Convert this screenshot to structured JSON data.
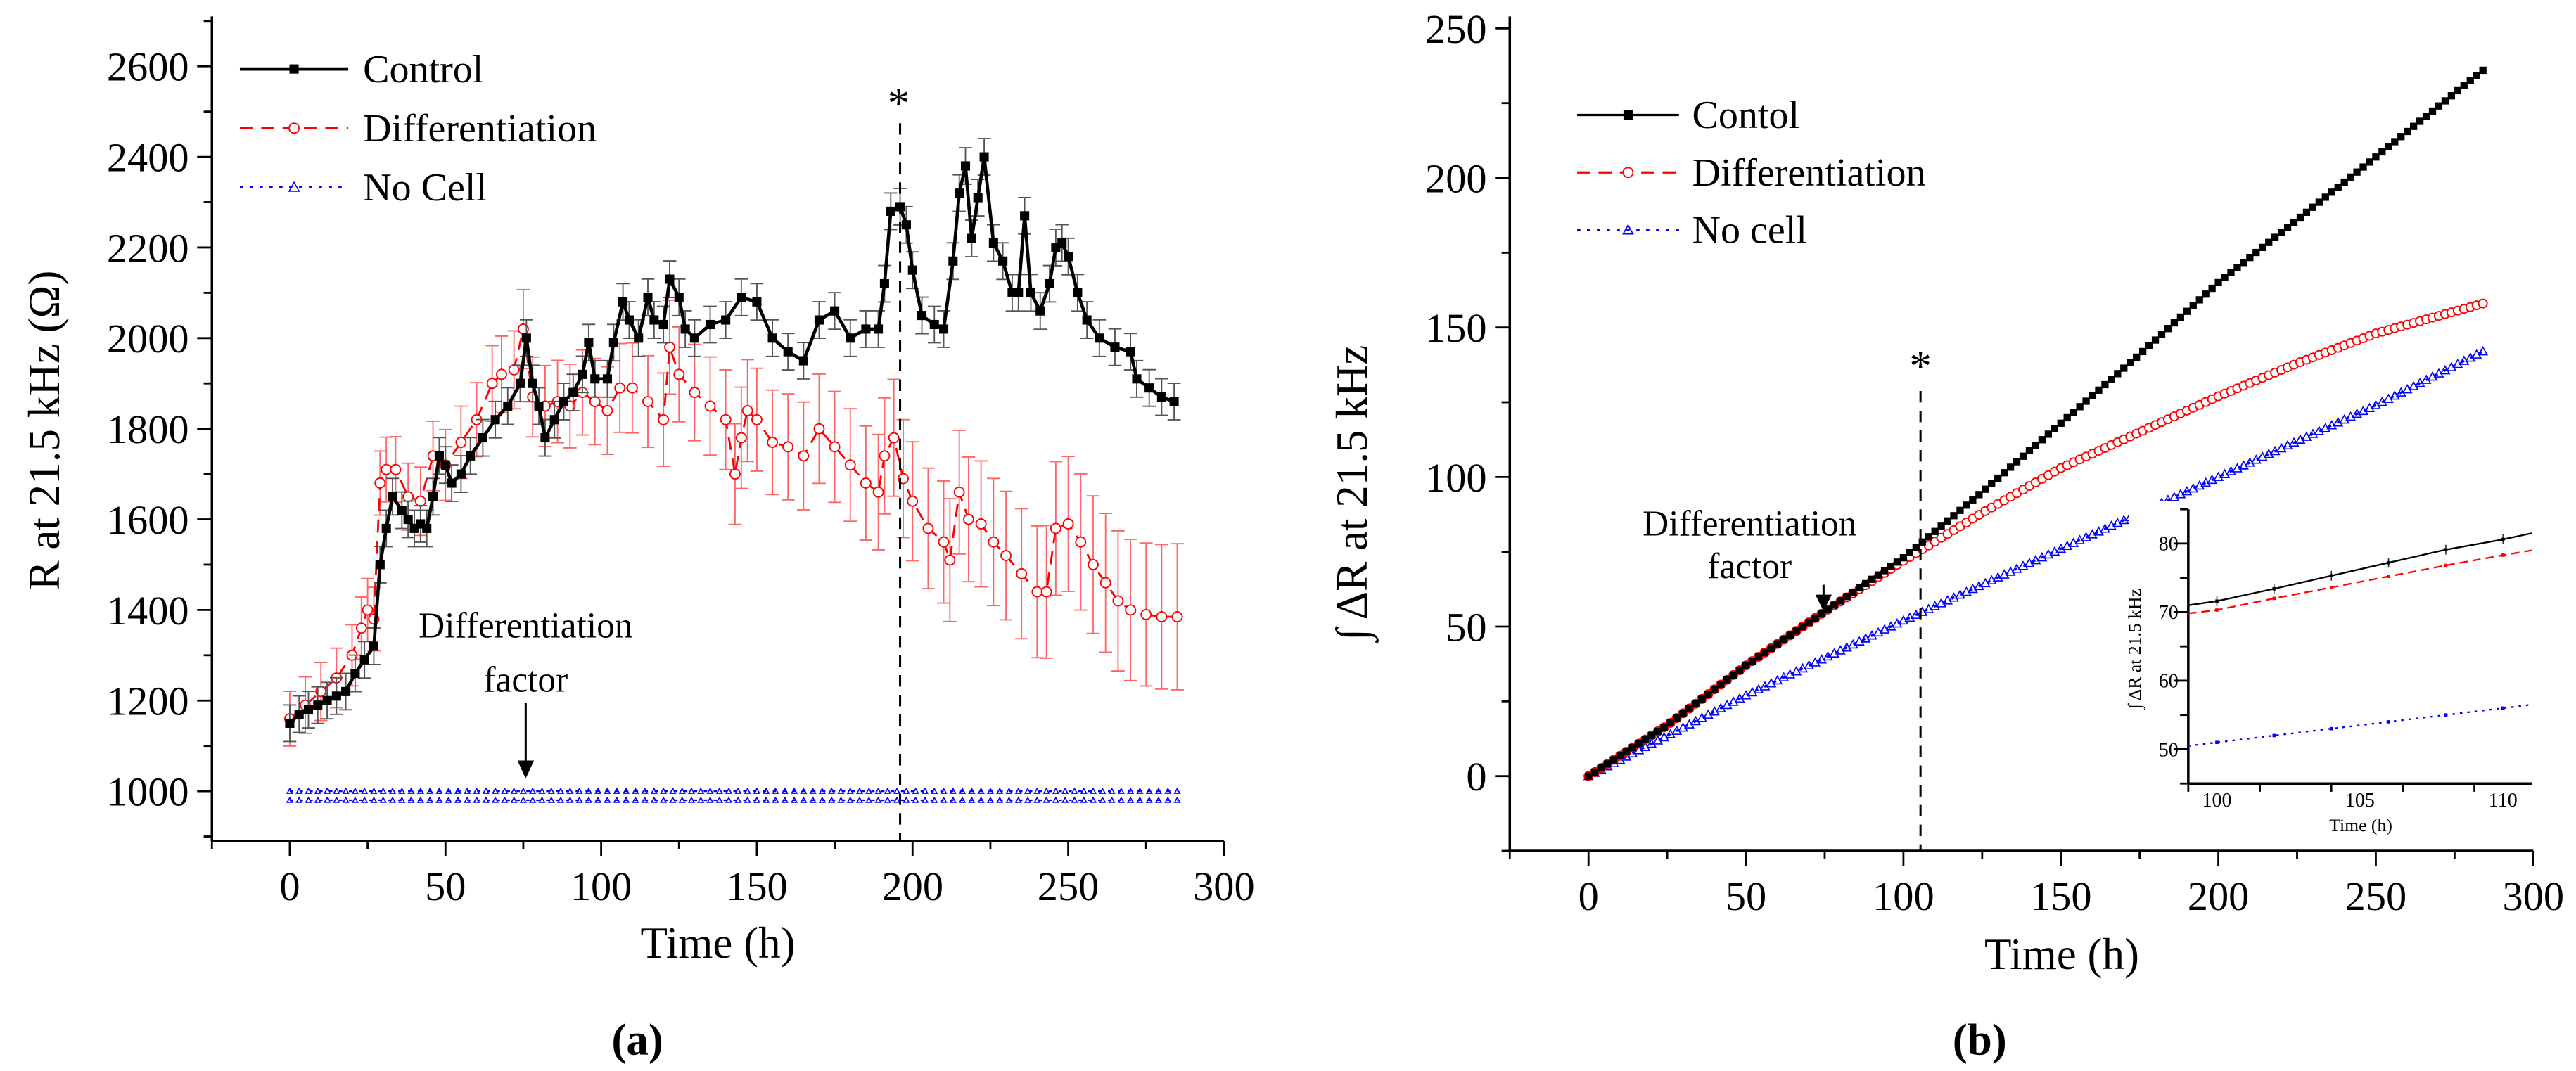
{
  "chart_data": [
    {
      "panel_label": "(a)",
      "type": "line",
      "xlabel": "Time (h)",
      "ylabel": "R at 21.5 kHz (Ω)",
      "xlim": [
        -25,
        300
      ],
      "ylim": [
        890,
        2710
      ],
      "xticks": [
        "0",
        "50",
        "100",
        "150",
        "200",
        "250",
        "300"
      ],
      "yticks": [
        "1000",
        "1200",
        "1400",
        "1600",
        "1800",
        "2000",
        "2200",
        "2400",
        "2600"
      ],
      "legend_position": "top-left",
      "annotations": {
        "star": "*",
        "star_time": 196,
        "factor_line1": "Differentiation",
        "factor_line2": "factor",
        "factor_time": 76
      },
      "series": [
        {
          "name": "Control",
          "color": "#000000",
          "marker": "filled-square",
          "line": "solid",
          "error": 40,
          "x": [
            0,
            3,
            6,
            9,
            12,
            15,
            18,
            21,
            24,
            27,
            29,
            31,
            33,
            36,
            38,
            40,
            42,
            44,
            46,
            48,
            50,
            52,
            55,
            58,
            62,
            66,
            70,
            74,
            76,
            78,
            80,
            82,
            85,
            88,
            91,
            94,
            96,
            98,
            102,
            104,
            107,
            109,
            112,
            115,
            117,
            120,
            122,
            125,
            127,
            130,
            135,
            140,
            145,
            150,
            155,
            160,
            165,
            170,
            175,
            180,
            185,
            189,
            191,
            193,
            196,
            198,
            200,
            203,
            207,
            210,
            213,
            215,
            217,
            219,
            221,
            223,
            226,
            229,
            232,
            234,
            236,
            238,
            241,
            244,
            246,
            248,
            250,
            253,
            256,
            260,
            265,
            270,
            272,
            276,
            280,
            284
          ],
          "y": [
            1150,
            1170,
            1180,
            1190,
            1200,
            1210,
            1220,
            1260,
            1290,
            1320,
            1500,
            1580,
            1650,
            1620,
            1600,
            1580,
            1590,
            1580,
            1650,
            1740,
            1720,
            1680,
            1700,
            1740,
            1780,
            1820,
            1850,
            1900,
            2000,
            1900,
            1850,
            1780,
            1820,
            1860,
            1880,
            1920,
            1990,
            1910,
            1910,
            1990,
            2080,
            2040,
            2000,
            2090,
            2040,
            2030,
            2130,
            2090,
            2020,
            2000,
            2030,
            2040,
            2090,
            2080,
            2000,
            1970,
            1950,
            2040,
            2060,
            2000,
            2020,
            2020,
            2120,
            2280,
            2290,
            2250,
            2150,
            2050,
            2030,
            2020,
            2170,
            2320,
            2380,
            2220,
            2310,
            2400,
            2210,
            2170,
            2100,
            2100,
            2270,
            2100,
            2060,
            2120,
            2200,
            2210,
            2180,
            2100,
            2040,
            2000,
            1980,
            1970,
            1910,
            1890,
            1870,
            1860
          ]
        },
        {
          "name": "Differentiation",
          "color": "#ff0000",
          "marker": "open-circle",
          "line": "dashed",
          "error": 100,
          "x": [
            0,
            5,
            10,
            15,
            20,
            23,
            25,
            27,
            29,
            31,
            34,
            38,
            42,
            46,
            50,
            55,
            60,
            65,
            68,
            72,
            75,
            78,
            82,
            86,
            90,
            94,
            98,
            102,
            106,
            110,
            115,
            120,
            122,
            125,
            130,
            135,
            140,
            143,
            145,
            147,
            150,
            155,
            160,
            165,
            170,
            175,
            180,
            185,
            189,
            191,
            194,
            197,
            200,
            205,
            210,
            212,
            215,
            218,
            222,
            226,
            230,
            235,
            240,
            243,
            246,
            250,
            254,
            258,
            262,
            266,
            270,
            275,
            280,
            285
          ],
          "y": [
            1160,
            1190,
            1220,
            1250,
            1300,
            1360,
            1400,
            1380,
            1680,
            1710,
            1710,
            1650,
            1640,
            1740,
            1720,
            1770,
            1820,
            1900,
            1920,
            1930,
            2020,
            1870,
            1850,
            1860,
            1850,
            1880,
            1860,
            1840,
            1890,
            1890,
            1860,
            1820,
            1980,
            1920,
            1880,
            1850,
            1820,
            1700,
            1780,
            1840,
            1820,
            1770,
            1760,
            1740,
            1800,
            1760,
            1720,
            1680,
            1660,
            1740,
            1780,
            1690,
            1640,
            1580,
            1550,
            1510,
            1660,
            1600,
            1590,
            1550,
            1520,
            1480,
            1440,
            1440,
            1580,
            1590,
            1550,
            1500,
            1460,
            1420,
            1400,
            1390,
            1385,
            1385
          ]
        },
        {
          "name": "No Cell",
          "color": "#0000ff",
          "marker": "open-triangle",
          "line": "dotted",
          "error": 10,
          "x": [
            0,
            285
          ],
          "y": [
            990,
            990
          ]
        }
      ]
    },
    {
      "panel_label": "(b)",
      "type": "line",
      "xlabel": "Time (h)",
      "ylabel": "∫ ΔR at 21.5 kHz",
      "xlim": [
        -25,
        300
      ],
      "ylim": [
        -25,
        254
      ],
      "xticks": [
        "0",
        "50",
        "100",
        "150",
        "200",
        "250",
        "300"
      ],
      "yticks": [
        "0",
        "50",
        "100",
        "150",
        "200",
        "250"
      ],
      "legend_position": "top-left",
      "annotations": {
        "star": "*",
        "star_time": 105.5,
        "factor_line1": "Differentiation",
        "factor_line2": "factor",
        "factor_time": 75
      },
      "series": [
        {
          "name": "Contol",
          "color": "#000000",
          "marker": "filled-square",
          "line": "solid",
          "x": [
            0,
            25,
            50,
            75,
            100,
            125,
            150,
            175,
            200,
            225,
            250,
            284
          ],
          "y": [
            0,
            17,
            37,
            55,
            73,
            95,
            118,
            141,
            165,
            186,
            207,
            236
          ]
        },
        {
          "name": "Differentiation",
          "color": "#ff0000",
          "marker": "open-circle",
          "line": "dashed",
          "x": [
            0,
            25,
            50,
            75,
            100,
            125,
            150,
            175,
            200,
            225,
            250,
            284
          ],
          "y": [
            0,
            17,
            37,
            55,
            72,
            88,
            103,
            115,
            127,
            138,
            148,
            158
          ]
        },
        {
          "name": "No cell",
          "color": "#0000ff",
          "marker": "open-triangle",
          "line": "dotted",
          "x": [
            0,
            50,
            100,
            150,
            200,
            250,
            284
          ],
          "y": [
            0,
            27,
            52,
            76,
            100,
            124,
            142
          ]
        }
      ],
      "inset": {
        "xlabel": "Time (h)",
        "ylabel": "∫ ΔR at 21.5 kHz",
        "xlim": [
          99,
          111
        ],
        "ylim": [
          45,
          85
        ],
        "xticks": [
          "100",
          "105",
          "110"
        ],
        "yticks": [
          "50",
          "60",
          "70",
          "80"
        ],
        "series": [
          {
            "name": "Contol",
            "color": "#000000",
            "x": [
              99,
              100,
              102,
              104,
              106,
              108,
              110,
              111
            ],
            "y": [
              71,
              71.6,
              73.4,
              75.3,
              77.2,
              79.1,
              80.6,
              81.5
            ]
          },
          {
            "name": "Differentiation",
            "color": "#ff0000",
            "x": [
              99,
              100,
              102,
              104,
              106,
              108,
              110,
              111
            ],
            "y": [
              69.8,
              70.3,
              72,
              73.6,
              75.2,
              76.8,
              78.3,
              79
            ]
          },
          {
            "name": "No cell",
            "color": "#0000ff",
            "x": [
              99,
              100,
              102,
              104,
              106,
              108,
              110,
              111
            ],
            "y": [
              50.5,
              51,
              52,
              53,
              54,
              55,
              56,
              56.5
            ]
          }
        ]
      }
    }
  ]
}
